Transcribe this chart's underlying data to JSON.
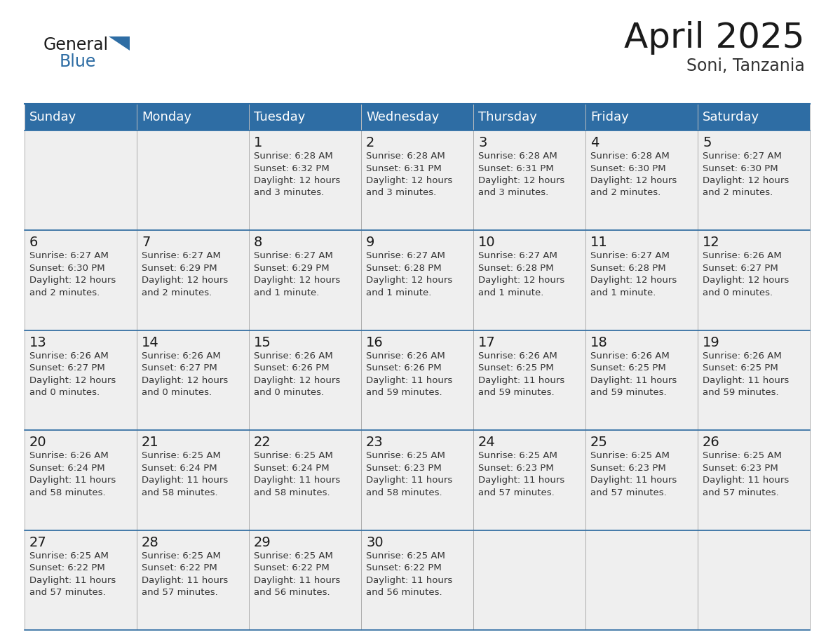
{
  "title": "April 2025",
  "subtitle": "Soni, Tanzania",
  "header_color": "#2E6DA4",
  "header_text_color": "#FFFFFF",
  "cell_bg_color": "#EFEFEF",
  "day_names": [
    "Sunday",
    "Monday",
    "Tuesday",
    "Wednesday",
    "Thursday",
    "Friday",
    "Saturday"
  ],
  "title_fontsize": 36,
  "subtitle_fontsize": 17,
  "header_fontsize": 13,
  "day_num_fontsize": 13,
  "cell_fontsize": 9.5,
  "logo_general_color": "#1a1a1a",
  "logo_blue_color": "#2E6DA4",
  "line_color": "#AAAAAA",
  "days": [
    {
      "date": 1,
      "col": 2,
      "row": 0,
      "sunrise": "6:28 AM",
      "sunset": "6:32 PM",
      "dl_hours": 12,
      "dl_mins": 3
    },
    {
      "date": 2,
      "col": 3,
      "row": 0,
      "sunrise": "6:28 AM",
      "sunset": "6:31 PM",
      "dl_hours": 12,
      "dl_mins": 3
    },
    {
      "date": 3,
      "col": 4,
      "row": 0,
      "sunrise": "6:28 AM",
      "sunset": "6:31 PM",
      "dl_hours": 12,
      "dl_mins": 3
    },
    {
      "date": 4,
      "col": 5,
      "row": 0,
      "sunrise": "6:28 AM",
      "sunset": "6:30 PM",
      "dl_hours": 12,
      "dl_mins": 2
    },
    {
      "date": 5,
      "col": 6,
      "row": 0,
      "sunrise": "6:27 AM",
      "sunset": "6:30 PM",
      "dl_hours": 12,
      "dl_mins": 2
    },
    {
      "date": 6,
      "col": 0,
      "row": 1,
      "sunrise": "6:27 AM",
      "sunset": "6:30 PM",
      "dl_hours": 12,
      "dl_mins": 2
    },
    {
      "date": 7,
      "col": 1,
      "row": 1,
      "sunrise": "6:27 AM",
      "sunset": "6:29 PM",
      "dl_hours": 12,
      "dl_mins": 2
    },
    {
      "date": 8,
      "col": 2,
      "row": 1,
      "sunrise": "6:27 AM",
      "sunset": "6:29 PM",
      "dl_hours": 12,
      "dl_mins": 1
    },
    {
      "date": 9,
      "col": 3,
      "row": 1,
      "sunrise": "6:27 AM",
      "sunset": "6:28 PM",
      "dl_hours": 12,
      "dl_mins": 1
    },
    {
      "date": 10,
      "col": 4,
      "row": 1,
      "sunrise": "6:27 AM",
      "sunset": "6:28 PM",
      "dl_hours": 12,
      "dl_mins": 1
    },
    {
      "date": 11,
      "col": 5,
      "row": 1,
      "sunrise": "6:27 AM",
      "sunset": "6:28 PM",
      "dl_hours": 12,
      "dl_mins": 1
    },
    {
      "date": 12,
      "col": 6,
      "row": 1,
      "sunrise": "6:26 AM",
      "sunset": "6:27 PM",
      "dl_hours": 12,
      "dl_mins": 0
    },
    {
      "date": 13,
      "col": 0,
      "row": 2,
      "sunrise": "6:26 AM",
      "sunset": "6:27 PM",
      "dl_hours": 12,
      "dl_mins": 0
    },
    {
      "date": 14,
      "col": 1,
      "row": 2,
      "sunrise": "6:26 AM",
      "sunset": "6:27 PM",
      "dl_hours": 12,
      "dl_mins": 0
    },
    {
      "date": 15,
      "col": 2,
      "row": 2,
      "sunrise": "6:26 AM",
      "sunset": "6:26 PM",
      "dl_hours": 12,
      "dl_mins": 0
    },
    {
      "date": 16,
      "col": 3,
      "row": 2,
      "sunrise": "6:26 AM",
      "sunset": "6:26 PM",
      "dl_hours": 11,
      "dl_mins": 59
    },
    {
      "date": 17,
      "col": 4,
      "row": 2,
      "sunrise": "6:26 AM",
      "sunset": "6:25 PM",
      "dl_hours": 11,
      "dl_mins": 59
    },
    {
      "date": 18,
      "col": 5,
      "row": 2,
      "sunrise": "6:26 AM",
      "sunset": "6:25 PM",
      "dl_hours": 11,
      "dl_mins": 59
    },
    {
      "date": 19,
      "col": 6,
      "row": 2,
      "sunrise": "6:26 AM",
      "sunset": "6:25 PM",
      "dl_hours": 11,
      "dl_mins": 59
    },
    {
      "date": 20,
      "col": 0,
      "row": 3,
      "sunrise": "6:26 AM",
      "sunset": "6:24 PM",
      "dl_hours": 11,
      "dl_mins": 58
    },
    {
      "date": 21,
      "col": 1,
      "row": 3,
      "sunrise": "6:25 AM",
      "sunset": "6:24 PM",
      "dl_hours": 11,
      "dl_mins": 58
    },
    {
      "date": 22,
      "col": 2,
      "row": 3,
      "sunrise": "6:25 AM",
      "sunset": "6:24 PM",
      "dl_hours": 11,
      "dl_mins": 58
    },
    {
      "date": 23,
      "col": 3,
      "row": 3,
      "sunrise": "6:25 AM",
      "sunset": "6:23 PM",
      "dl_hours": 11,
      "dl_mins": 58
    },
    {
      "date": 24,
      "col": 4,
      "row": 3,
      "sunrise": "6:25 AM",
      "sunset": "6:23 PM",
      "dl_hours": 11,
      "dl_mins": 57
    },
    {
      "date": 25,
      "col": 5,
      "row": 3,
      "sunrise": "6:25 AM",
      "sunset": "6:23 PM",
      "dl_hours": 11,
      "dl_mins": 57
    },
    {
      "date": 26,
      "col": 6,
      "row": 3,
      "sunrise": "6:25 AM",
      "sunset": "6:23 PM",
      "dl_hours": 11,
      "dl_mins": 57
    },
    {
      "date": 27,
      "col": 0,
      "row": 4,
      "sunrise": "6:25 AM",
      "sunset": "6:22 PM",
      "dl_hours": 11,
      "dl_mins": 57
    },
    {
      "date": 28,
      "col": 1,
      "row": 4,
      "sunrise": "6:25 AM",
      "sunset": "6:22 PM",
      "dl_hours": 11,
      "dl_mins": 57
    },
    {
      "date": 29,
      "col": 2,
      "row": 4,
      "sunrise": "6:25 AM",
      "sunset": "6:22 PM",
      "dl_hours": 11,
      "dl_mins": 56
    },
    {
      "date": 30,
      "col": 3,
      "row": 4,
      "sunrise": "6:25 AM",
      "sunset": "6:22 PM",
      "dl_hours": 11,
      "dl_mins": 56
    }
  ]
}
